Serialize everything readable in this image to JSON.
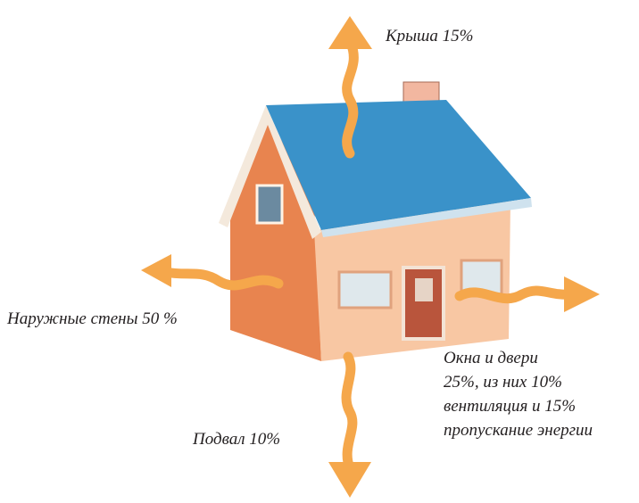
{
  "labels": {
    "roof": "Крыша 15%",
    "walls": "Наружные стены 50 %",
    "windows": [
      "Окна и двери",
      "25%, из них 10%",
      "вентиляция и 15%",
      "пропускание энергии"
    ],
    "basement": "Подвал 10%"
  }
}
